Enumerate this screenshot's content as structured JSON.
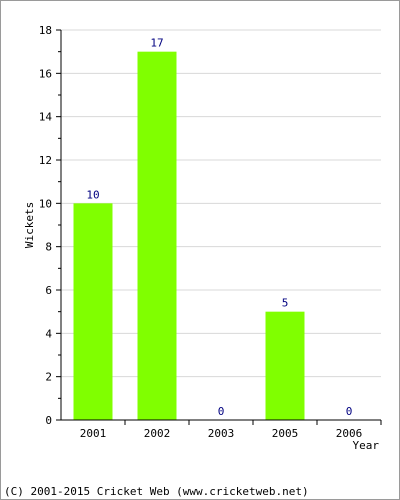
{
  "chart_data": {
    "type": "bar",
    "categories": [
      "2001",
      "2002",
      "2003",
      "2005",
      "2006"
    ],
    "values": [
      10,
      17,
      0,
      5,
      0
    ],
    "title": "",
    "xlabel": "Year",
    "ylabel": "Wickets",
    "ylim": [
      0,
      18
    ],
    "yticks": [
      0,
      2,
      4,
      6,
      8,
      10,
      12,
      14,
      16,
      18
    ],
    "grid": true,
    "bar_color": "#80ff00",
    "data_label_color": "#000080",
    "legend": "none"
  },
  "footer": {
    "copyright": "(C) 2001-2015 Cricket Web (www.cricketweb.net)"
  }
}
